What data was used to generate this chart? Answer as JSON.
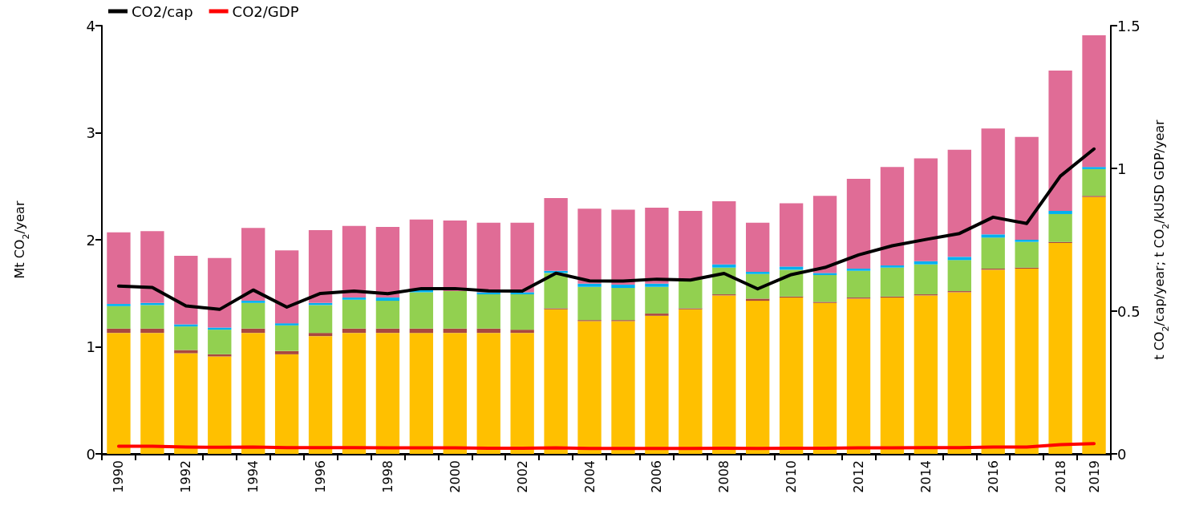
{
  "chart_data": {
    "type": "bar",
    "stacked": true,
    "ylabel": "Mt CO$_{2}$/year",
    "y2label": "t CO$_{2}$/cap/year; t CO$_{2}$/kUSD GDP/year",
    "categories": [
      "1990",
      null,
      "1992",
      null,
      "1994",
      null,
      "1996",
      null,
      "1998",
      null,
      "2000",
      null,
      "2002",
      null,
      "2004",
      null,
      "2006",
      null,
      "2008",
      null,
      "2010",
      null,
      "2012",
      null,
      "2014",
      null,
      "2016",
      null,
      "2018",
      "2019"
    ],
    "series": [
      {
        "color": "#ffc000",
        "values": [
          1.13,
          1.13,
          0.94,
          0.91,
          1.13,
          0.93,
          1.1,
          1.13,
          1.13,
          1.13,
          1.13,
          1.13,
          1.13,
          1.35,
          1.24,
          1.24,
          1.29,
          1.35,
          1.48,
          1.43,
          1.46,
          1.41,
          1.45,
          1.46,
          1.48,
          1.51,
          1.72,
          1.73,
          1.97,
          2.4
        ]
      },
      {
        "color": "#a9483f",
        "values": [
          0.04,
          0.04,
          0.03,
          0.02,
          0.04,
          0.03,
          0.03,
          0.04,
          0.04,
          0.04,
          0.04,
          0.04,
          0.03,
          0.01,
          0.01,
          0.01,
          0.02,
          0.01,
          0.01,
          0.02,
          0.01,
          0.01,
          0.01,
          0.01,
          0.01,
          0.01,
          0.01,
          0.01,
          0.01,
          0.01
        ]
      },
      {
        "color": "#92d050",
        "values": [
          0.21,
          0.22,
          0.22,
          0.23,
          0.24,
          0.24,
          0.26,
          0.27,
          0.26,
          0.34,
          0.35,
          0.32,
          0.33,
          0.33,
          0.31,
          0.3,
          0.25,
          0.27,
          0.25,
          0.23,
          0.25,
          0.25,
          0.25,
          0.27,
          0.28,
          0.29,
          0.29,
          0.24,
          0.26,
          0.25
        ]
      },
      {
        "color": "#00b0f0",
        "values": [
          0.02,
          0.02,
          0.02,
          0.02,
          0.02,
          0.02,
          0.02,
          0.02,
          0.03,
          0.02,
          null,
          0.02,
          0.02,
          0.02,
          0.03,
          0.03,
          0.03,
          null,
          0.03,
          0.02,
          0.03,
          0.02,
          0.02,
          0.02,
          0.03,
          0.03,
          0.03,
          0.02,
          0.03,
          0.02
        ]
      },
      {
        "color": "#e06c96",
        "values": [
          0.67,
          0.67,
          0.64,
          0.65,
          0.68,
          0.68,
          0.68,
          0.67,
          0.66,
          0.66,
          0.66,
          0.65,
          0.65,
          0.68,
          0.7,
          0.7,
          0.71,
          0.64,
          0.59,
          0.46,
          0.59,
          0.72,
          0.84,
          0.92,
          0.96,
          1.0,
          0.99,
          0.96,
          1.31,
          1.23
        ]
      },
      {
        "name": "CO2/cap",
        "type": "line",
        "axis": "y2",
        "color": "#000000",
        "values": [
          0.588,
          0.583,
          0.518,
          0.506,
          0.574,
          0.514,
          0.562,
          0.57,
          0.561,
          0.579,
          0.579,
          0.571,
          0.57,
          0.633,
          0.606,
          0.605,
          0.612,
          0.609,
          0.632,
          0.578,
          0.628,
          0.653,
          0.697,
          0.729,
          0.751,
          0.772,
          0.829,
          0.807,
          0.973,
          1.068
        ]
      },
      {
        "name": "CO2/GDP",
        "type": "line",
        "axis": "y2",
        "color": "#ff0000",
        "values": [
          0.027,
          0.027,
          0.024,
          0.023,
          0.024,
          0.022,
          0.022,
          0.022,
          0.021,
          0.021,
          0.021,
          0.02,
          0.02,
          0.021,
          0.019,
          0.019,
          0.019,
          0.019,
          0.02,
          0.019,
          0.02,
          0.02,
          0.021,
          0.021,
          0.022,
          0.022,
          0.024,
          0.024,
          0.032,
          0.036
        ]
      }
    ],
    "ylim": [
      0,
      4
    ],
    "yticks": [
      0,
      1,
      2,
      3,
      4
    ],
    "y2lim": [
      0,
      1.5
    ],
    "y2ticks": [
      0,
      0.5,
      1,
      1.5
    ],
    "legend": "top left",
    "marker": "none",
    "line_style": "solid"
  }
}
